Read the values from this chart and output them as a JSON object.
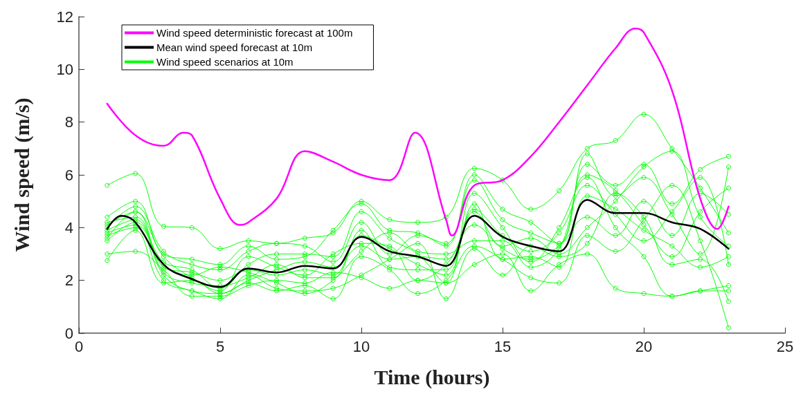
{
  "chart_data": {
    "type": "line",
    "xlabel": "Time (hours)",
    "ylabel": "Wind speed (m/s)",
    "xlim": [
      0,
      25
    ],
    "ylim": [
      0,
      12
    ],
    "xticks": [
      0,
      5,
      10,
      15,
      20,
      25
    ],
    "yticks": [
      0,
      2,
      4,
      6,
      8,
      10,
      12
    ],
    "grid": false,
    "legend": "top left",
    "line_style": "solid",
    "series": [
      {
        "name": "Wind speed deterministic forecast at 100m",
        "color": "#ff00ff",
        "marker": "none",
        "x": [
          1,
          2,
          3,
          3.7,
          4,
          5,
          5.7,
          6,
          7,
          8,
          9,
          10,
          11,
          11.9,
          13,
          13.2,
          14,
          15,
          16,
          17,
          18,
          19,
          19.7,
          20,
          21,
          22,
          22.6,
          23
        ],
        "values": [
          8.7,
          7.5,
          7.1,
          7.6,
          7.5,
          5.1,
          4.1,
          4.2,
          5.1,
          6.9,
          6.5,
          6.0,
          5.8,
          7.6,
          4.3,
          3.7,
          5.6,
          5.8,
          6.7,
          8.0,
          9.4,
          10.8,
          11.55,
          11.4,
          9.2,
          5.1,
          3.95,
          4.8
        ]
      },
      {
        "name": "Mean wind speed forecast at 10m",
        "color": "#000000",
        "marker": "none",
        "x": [
          1,
          1.5,
          2,
          3,
          4,
          5,
          6,
          7,
          8,
          9,
          10,
          11,
          12,
          13,
          14,
          15,
          16,
          17,
          18,
          19,
          20,
          21,
          22,
          23
        ],
        "values": [
          3.95,
          4.45,
          4.2,
          2.6,
          2.05,
          1.75,
          2.45,
          2.3,
          2.55,
          2.45,
          3.65,
          3.1,
          2.9,
          2.55,
          4.45,
          3.65,
          3.3,
          3.1,
          5.05,
          4.55,
          4.55,
          4.2,
          3.95,
          3.2
        ]
      },
      {
        "name": "Wind speed scenarios at 10m",
        "color": "#00ff00",
        "marker": "circle",
        "values": [
          5.6,
          6.05,
          4.05,
          4.0,
          3.2,
          3.5,
          3.4,
          3.6,
          3.8,
          5.0,
          4.3,
          4.2,
          4.4,
          6.25,
          5.8,
          4.7,
          5.4,
          7.0,
          7.3,
          8.3,
          7.0,
          5.5,
          3.8
        ]
      },
      {
        "color": "#00ff00",
        "marker": "circle",
        "values": [
          4.4,
          5.0,
          3.0,
          2.8,
          2.6,
          3.3,
          2.8,
          2.9,
          3.9,
          4.9,
          3.9,
          3.8,
          3.3,
          6.0,
          4.7,
          4.2,
          3.4,
          6.4,
          5.6,
          6.4,
          4.9,
          6.2,
          6.7
        ]
      },
      {
        "color": "#00ff00",
        "marker": "circle",
        "values": [
          4.1,
          4.6,
          2.5,
          2.3,
          2.0,
          2.4,
          2.2,
          2.4,
          2.2,
          3.7,
          3.2,
          2.6,
          2.2,
          4.7,
          3.7,
          3.1,
          3.8,
          5.6,
          4.5,
          3.5,
          4.6,
          5.9,
          2.6
        ]
      },
      {
        "color": "#00ff00",
        "marker": "circle",
        "values": [
          3.9,
          4.3,
          2.2,
          1.6,
          1.5,
          2.0,
          2.4,
          2.7,
          2.5,
          3.3,
          2.8,
          2.9,
          2.8,
          4.6,
          3.3,
          3.6,
          3.0,
          4.0,
          5.0,
          6.3,
          6.9,
          4.4,
          3.3
        ]
      },
      {
        "color": "#00ff00",
        "marker": "circle",
        "values": [
          3.7,
          4.0,
          2.0,
          1.6,
          1.3,
          2.2,
          1.7,
          1.6,
          1.7,
          2.2,
          2.8,
          3.4,
          1.3,
          3.2,
          2.2,
          3.3,
          2.9,
          3.4,
          5.3,
          4.4,
          2.6,
          2.8,
          1.2
        ]
      },
      {
        "color": "#00ff00",
        "marker": "circle",
        "values": [
          3.5,
          4.2,
          2.7,
          2.4,
          1.7,
          2.6,
          3.0,
          3.0,
          2.9,
          4.6,
          3.6,
          3.0,
          1.9,
          5.3,
          4.0,
          2.7,
          4.0,
          5.9,
          4.0,
          2.9,
          1.4,
          1.6,
          1.8
        ]
      },
      {
        "color": "#00ff00",
        "marker": "circle",
        "values": [
          3.0,
          3.1,
          2.4,
          1.4,
          1.4,
          1.8,
          2.0,
          1.9,
          2.3,
          2.1,
          1.7,
          2.0,
          1.9,
          2.6,
          3.0,
          1.6,
          2.6,
          3.0,
          1.7,
          1.5,
          1.4,
          1.6,
          1.6
        ]
      },
      {
        "color": "#00ff00",
        "marker": "circle",
        "values": [
          2.75,
          3.9,
          1.9,
          2.0,
          1.5,
          1.9,
          1.6,
          1.8,
          1.3,
          2.9,
          2.4,
          1.5,
          2.0,
          3.3,
          2.8,
          2.1,
          1.9,
          3.7,
          3.1,
          4.3,
          5.6,
          3.5,
          0.2
        ]
      },
      {
        "color": "#00ff00",
        "marker": "circle",
        "values": [
          4.0,
          4.8,
          3.1,
          2.6,
          2.4,
          3.1,
          3.4,
          3.3,
          2.7,
          4.2,
          3.0,
          3.7,
          3.4,
          5.8,
          4.3,
          3.8,
          3.4,
          6.8,
          5.2,
          5.9,
          4.5,
          3.0,
          6.3
        ]
      },
      {
        "color": "#00ff00",
        "marker": "circle",
        "values": [
          3.6,
          4.6,
          2.9,
          2.1,
          1.6,
          2.9,
          2.5,
          2.2,
          3.0,
          3.4,
          3.3,
          2.0,
          2.6,
          4.1,
          3.2,
          2.8,
          3.3,
          4.4,
          3.7,
          5.0,
          3.7,
          5.3,
          4.5
        ]
      },
      {
        "color": "#00ff00",
        "marker": "circle",
        "values": [
          4.2,
          4.4,
          2.3,
          1.9,
          1.8,
          2.1,
          2.6,
          2.1,
          2.1,
          3.9,
          2.5,
          2.4,
          2.4,
          4.9,
          2.8,
          2.9,
          2.5,
          5.2,
          4.7,
          3.9,
          3.3,
          2.5,
          2.9
        ]
      },
      {
        "color": "#00ff00",
        "marker": "circle",
        "values": [
          3.8,
          4.1,
          2.6,
          2.2,
          2.5,
          2.3,
          1.9,
          1.5,
          2.0,
          3.1,
          3.8,
          3.1,
          3.0,
          3.5,
          3.5,
          2.5,
          3.2,
          6.0,
          5.4,
          4.1,
          2.9,
          4.6,
          5.5
        ]
      }
    ],
    "x": [
      1,
      2,
      3,
      4,
      5,
      6,
      7,
      8,
      9,
      10,
      11,
      12,
      13,
      14,
      15,
      16,
      17,
      18,
      19,
      20,
      21,
      22,
      23
    ]
  }
}
